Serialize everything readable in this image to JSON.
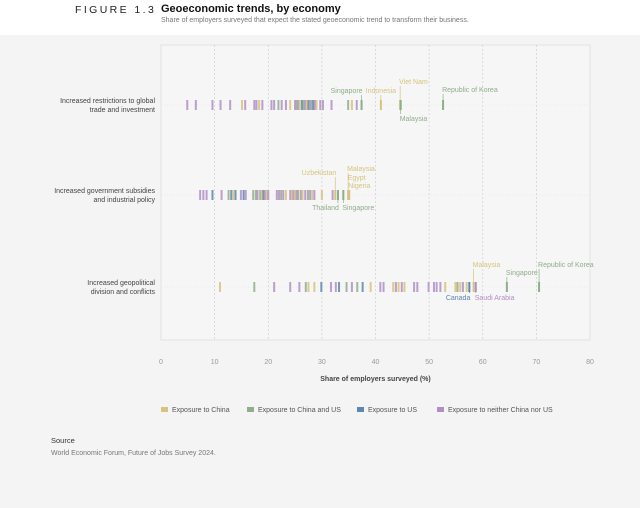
{
  "header": {
    "figure": "FIGURE 1.3",
    "title": "Geoeconomic trends, by economy",
    "subtitle": "Share of employers surveyed that expect the stated geoeconomic trend to transform their business."
  },
  "source": {
    "heading": "Source",
    "text": "World Economic Forum, Future of Jobs Survey 2024."
  },
  "chart_data": {
    "type": "strip",
    "xlabel": "Share of employers surveyed (%)",
    "xlim": [
      0,
      80
    ],
    "xticks": [
      0,
      10,
      20,
      30,
      40,
      50,
      60,
      70,
      80
    ],
    "grid": true,
    "legend_placement": "bottom",
    "colors": {
      "C": "#d6c37e",
      "CU": "#8fae8a",
      "U": "#5b87b0",
      "N": "#b08fc6"
    },
    "legend": [
      {
        "key": "C",
        "label": "Exposure to China"
      },
      {
        "key": "CU",
        "label": "Exposure to China and US"
      },
      {
        "key": "U",
        "label": "Exposure to US"
      },
      {
        "key": "N",
        "label": "Exposure to neither China nor US"
      }
    ],
    "rows": [
      {
        "label": [
          "Increased restrictions to global",
          "trade and investment"
        ],
        "points": [
          [
            4.9,
            "N"
          ],
          [
            6.5,
            "N"
          ],
          [
            9.6,
            "N"
          ],
          [
            11.1,
            "N"
          ],
          [
            12.9,
            "N"
          ],
          [
            15.1,
            "C"
          ],
          [
            15.7,
            "N"
          ],
          [
            17.4,
            "N"
          ],
          [
            17.8,
            "N"
          ],
          [
            18.3,
            "C"
          ],
          [
            18.9,
            "N"
          ],
          [
            20.6,
            "N"
          ],
          [
            21.1,
            "N"
          ],
          [
            21.9,
            "CU"
          ],
          [
            22.5,
            "N"
          ],
          [
            23.3,
            "N"
          ],
          [
            24.1,
            "C"
          ],
          [
            25.0,
            "N"
          ],
          [
            25.3,
            "CU"
          ],
          [
            25.6,
            "N"
          ],
          [
            25.9,
            "C"
          ],
          [
            26.3,
            "U"
          ],
          [
            26.6,
            "CU"
          ],
          [
            26.9,
            "N"
          ],
          [
            27.2,
            "C"
          ],
          [
            27.5,
            "U"
          ],
          [
            27.8,
            "N"
          ],
          [
            28.1,
            "CU"
          ],
          [
            28.4,
            "U"
          ],
          [
            28.7,
            "N"
          ],
          [
            29.0,
            "C"
          ],
          [
            29.7,
            "N"
          ],
          [
            30.2,
            "N"
          ],
          [
            31.8,
            "N"
          ],
          [
            34.9,
            "CU"
          ],
          [
            35.6,
            "C"
          ],
          [
            36.5,
            "N"
          ]
        ],
        "highlights": [
          {
            "name": "Singapore",
            "value": 37.4,
            "cat": "CU"
          },
          {
            "name": "Indonesia",
            "value": 41.0,
            "cat": "C"
          },
          {
            "name": "Viet Nam",
            "value": 44.6,
            "cat": "C"
          },
          {
            "name": "Malaysia",
            "value": 44.7,
            "cat": "CU"
          },
          {
            "name": "Republic of Korea",
            "value": 52.6,
            "cat": "CU"
          }
        ]
      },
      {
        "label": [
          "Increased government subsidies",
          "and industrial policy"
        ],
        "points": [
          [
            7.3,
            "N"
          ],
          [
            7.9,
            "N"
          ],
          [
            8.5,
            "N"
          ],
          [
            9.6,
            "U"
          ],
          [
            11.3,
            "N"
          ],
          [
            12.6,
            "CU"
          ],
          [
            13.1,
            "U"
          ],
          [
            13.5,
            "C"
          ],
          [
            13.9,
            "U"
          ],
          [
            14.9,
            "N"
          ],
          [
            15.4,
            "U"
          ],
          [
            15.8,
            "N"
          ],
          [
            17.2,
            "CU"
          ],
          [
            17.7,
            "CU"
          ],
          [
            18.0,
            "N"
          ],
          [
            18.5,
            "CU"
          ],
          [
            18.8,
            "C"
          ],
          [
            19.1,
            "U"
          ],
          [
            19.4,
            "N"
          ],
          [
            19.7,
            "C"
          ],
          [
            20.0,
            "N"
          ],
          [
            21.6,
            "N"
          ],
          [
            22.0,
            "N"
          ],
          [
            22.4,
            "CU"
          ],
          [
            22.8,
            "N"
          ],
          [
            23.3,
            "C"
          ],
          [
            24.1,
            "N"
          ],
          [
            24.4,
            "C"
          ],
          [
            24.7,
            "N"
          ],
          [
            25.0,
            "C"
          ],
          [
            25.3,
            "N"
          ],
          [
            25.6,
            "CU"
          ],
          [
            26.1,
            "N"
          ],
          [
            26.4,
            "C"
          ],
          [
            26.9,
            "N"
          ],
          [
            27.4,
            "CU"
          ],
          [
            27.8,
            "N"
          ],
          [
            28.2,
            "C"
          ],
          [
            28.6,
            "N"
          ],
          [
            30.0,
            "C"
          ],
          [
            32.0,
            "N"
          ]
        ],
        "highlights": [
          {
            "name": "Uzbekistan",
            "value": 32.5,
            "cat": "C"
          },
          {
            "name": "Thailand",
            "value": 33.0,
            "cat": "CU"
          },
          {
            "name": "Singapore",
            "value": 34.0,
            "cat": "CU"
          },
          {
            "name": "Malaysia",
            "value": 34.9,
            "cat": "C"
          },
          {
            "name": "Egypt",
            "value": 35.0,
            "cat": "C"
          },
          {
            "name": "Nigeria",
            "value": 35.1,
            "cat": "C"
          }
        ]
      },
      {
        "label": [
          "Increased geopolitical",
          "division and conflicts"
        ],
        "points": [
          [
            11.0,
            "C"
          ],
          [
            17.4,
            "CU"
          ],
          [
            21.1,
            "N"
          ],
          [
            24.1,
            "N"
          ],
          [
            25.8,
            "N"
          ],
          [
            27.0,
            "CU"
          ],
          [
            27.5,
            "C"
          ],
          [
            28.6,
            "C"
          ],
          [
            29.9,
            "U"
          ],
          [
            31.7,
            "N"
          ],
          [
            32.6,
            "N"
          ],
          [
            33.2,
            "U"
          ],
          [
            34.6,
            "CU"
          ],
          [
            35.6,
            "N"
          ],
          [
            36.6,
            "CU"
          ],
          [
            37.6,
            "U"
          ],
          [
            39.1,
            "C"
          ],
          [
            40.9,
            "N"
          ],
          [
            41.5,
            "N"
          ],
          [
            43.3,
            "C"
          ],
          [
            43.8,
            "N"
          ],
          [
            44.3,
            "C"
          ],
          [
            44.9,
            "N"
          ],
          [
            45.4,
            "C"
          ],
          [
            47.2,
            "N"
          ],
          [
            47.8,
            "N"
          ],
          [
            49.9,
            "N"
          ],
          [
            50.9,
            "N"
          ],
          [
            51.4,
            "N"
          ],
          [
            52.1,
            "N"
          ],
          [
            53.0,
            "C"
          ],
          [
            54.9,
            "C"
          ],
          [
            55.3,
            "CU"
          ],
          [
            55.8,
            "C"
          ],
          [
            56.3,
            "N"
          ],
          [
            57.0,
            "C"
          ]
        ],
        "highlights": [
          {
            "name": "Canada",
            "value": 57.5,
            "cat": "U"
          },
          {
            "name": "Malaysia",
            "value": 58.3,
            "cat": "C"
          },
          {
            "name": "Saudi Arabia",
            "value": 58.7,
            "cat": "N"
          },
          {
            "name": "Singapore",
            "value": 64.5,
            "cat": "CU"
          },
          {
            "name": "Republic of Korea",
            "value": 70.5,
            "cat": "CU"
          }
        ]
      }
    ]
  }
}
